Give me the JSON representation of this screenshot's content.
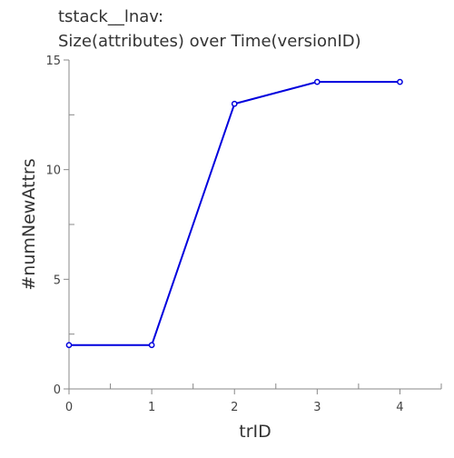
{
  "chart_data": {
    "type": "line",
    "title_lines": [
      "tstack__lnav:",
      "Size(attributes) over Time(versionID)"
    ],
    "xlabel": "trID",
    "ylabel": "#numNewAttrs",
    "x": [
      0,
      1,
      2,
      3,
      4
    ],
    "y": [
      2,
      2,
      13,
      14,
      14
    ],
    "x_ticks": [
      0,
      1,
      2,
      3,
      4
    ],
    "y_ticks": [
      0,
      5,
      10,
      15
    ],
    "xlim": [
      0,
      4.5
    ],
    "ylim": [
      0,
      15
    ],
    "grid": false,
    "line_color": "#0000dd"
  }
}
